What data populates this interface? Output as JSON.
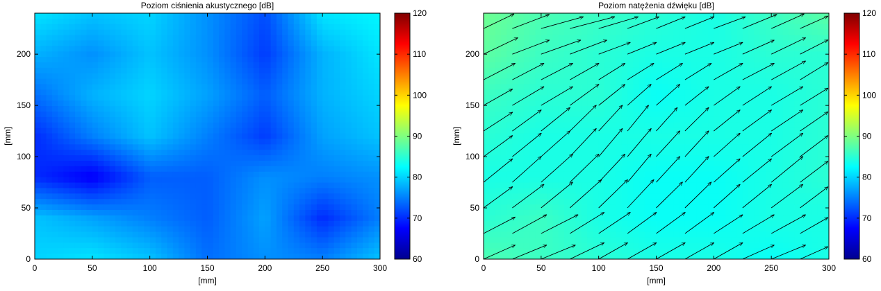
{
  "colors": {
    "colormap": "jet",
    "arrow": "#000000",
    "frame": "#000000"
  },
  "chart_data": [
    {
      "type": "heatmap",
      "title": "Poziom ciśnienia akustycznego [dB]",
      "xlabel": "[mm]",
      "ylabel": "[mm]",
      "xlim": [
        0,
        300
      ],
      "ylim": [
        0,
        240
      ],
      "xticks": [
        "0",
        "50",
        "100",
        "150",
        "200",
        "250",
        "300"
      ],
      "yticks": [
        "0",
        "50",
        "100",
        "150",
        "200"
      ],
      "colorbar": {
        "clim": [
          60,
          120
        ],
        "ticks": [
          "60",
          "70",
          "80",
          "90",
          "100",
          "110",
          "120"
        ]
      },
      "x": [
        0,
        50,
        100,
        150,
        200,
        250,
        300
      ],
      "y": [
        0,
        40,
        80,
        120,
        160,
        200,
        240
      ],
      "values": [
        [
          80,
          81,
          79,
          74,
          76,
          75,
          79
        ],
        [
          79,
          77,
          75,
          73,
          77,
          70,
          75
        ],
        [
          70,
          67,
          73,
          73,
          76,
          75,
          76
        ],
        [
          70,
          75,
          79,
          75,
          71,
          77,
          79
        ],
        [
          74,
          78,
          80,
          77,
          73,
          78,
          80
        ],
        [
          78,
          76,
          79,
          76,
          71,
          78,
          81
        ],
        [
          81,
          79,
          80,
          76,
          72,
          81,
          82
        ]
      ]
    },
    {
      "type": "heatmap",
      "title": "Poziom natężenia dźwięku [dB]",
      "xlabel": "[mm]",
      "ylabel": "[mm]",
      "xlim": [
        0,
        300
      ],
      "ylim": [
        0,
        240
      ],
      "xticks": [
        "0",
        "50",
        "100",
        "150",
        "200",
        "250",
        "300"
      ],
      "yticks": [
        "0",
        "50",
        "100",
        "150",
        "200"
      ],
      "colorbar": {
        "clim": [
          60,
          120
        ],
        "ticks": [
          "60",
          "70",
          "80",
          "90",
          "100",
          "110",
          "120"
        ]
      },
      "x": [
        0,
        50,
        100,
        150,
        200,
        250,
        300
      ],
      "y": [
        0,
        40,
        80,
        120,
        160,
        200,
        240
      ],
      "values": [
        [
          87,
          86,
          85,
          84,
          84,
          83,
          84
        ],
        [
          85,
          86,
          84,
          83,
          83,
          84,
          84
        ],
        [
          84,
          84,
          84,
          83,
          83,
          84,
          85
        ],
        [
          85,
          84,
          84,
          84,
          84,
          84,
          85
        ],
        [
          86,
          85,
          85,
          83,
          84,
          84,
          85
        ],
        [
          88,
          86,
          85,
          84,
          84,
          85,
          85
        ],
        [
          89,
          87,
          86,
          85,
          84,
          86,
          88
        ]
      ],
      "vectors": {
        "x": [
          0,
          25,
          50,
          75,
          100,
          125,
          150,
          175,
          200,
          225,
          250,
          275,
          300
        ],
        "y": [
          0,
          25,
          50,
          75,
          100,
          125,
          150,
          175,
          200,
          225
        ],
        "u": [
          [
            12,
            13,
            13,
            13,
            11,
            11,
            11,
            11,
            11,
            12,
            13,
            14,
            13
          ],
          [
            12,
            13,
            14,
            13,
            12,
            11,
            11,
            11,
            11,
            12,
            13,
            14,
            14
          ],
          [
            11,
            12,
            12,
            12,
            11,
            10,
            10,
            10,
            10,
            11,
            12,
            13,
            13
          ],
          [
            11,
            11,
            12,
            11,
            10,
            9,
            9,
            9,
            10,
            11,
            12,
            13,
            13
          ],
          [
            11,
            11,
            11,
            10,
            9,
            9,
            9,
            9,
            10,
            11,
            12,
            13,
            13
          ],
          [
            11,
            11,
            11,
            10,
            9,
            8,
            8,
            9,
            10,
            11,
            12,
            13,
            13
          ],
          [
            11,
            12,
            12,
            11,
            10,
            9,
            9,
            9,
            10,
            11,
            12,
            13,
            14
          ],
          [
            12,
            12,
            12,
            11,
            10,
            10,
            10,
            10,
            11,
            12,
            13,
            13,
            14
          ],
          [
            13,
            14,
            15,
            14,
            12,
            11,
            11,
            11,
            11,
            12,
            13,
            14,
            14
          ],
          [
            13,
            14,
            16,
            17,
            15,
            12,
            11,
            11,
            12,
            13,
            14,
            14,
            14
          ]
        ],
        "v": [
          [
            6,
            6,
            6,
            7,
            7,
            7,
            7,
            7,
            7,
            6,
            6,
            7,
            7
          ],
          [
            7,
            8,
            8,
            9,
            9,
            9,
            9,
            9,
            8,
            8,
            8,
            9,
            9
          ],
          [
            9,
            10,
            11,
            12,
            12,
            12,
            11,
            11,
            10,
            10,
            10,
            11,
            11
          ],
          [
            10,
            11,
            12,
            12,
            12,
            12,
            11,
            11,
            10,
            10,
            11,
            11,
            12
          ],
          [
            9,
            10,
            11,
            12,
            12,
            12,
            11,
            11,
            10,
            10,
            10,
            11,
            11
          ],
          [
            8,
            9,
            10,
            11,
            11,
            11,
            10,
            10,
            9,
            9,
            9,
            10,
            11
          ],
          [
            7,
            8,
            8,
            9,
            9,
            9,
            9,
            8,
            8,
            8,
            8,
            9,
            10
          ],
          [
            7,
            7,
            7,
            7,
            7,
            7,
            7,
            7,
            7,
            7,
            8,
            9,
            10
          ],
          [
            7,
            6,
            6,
            6,
            5,
            5,
            5,
            5,
            5,
            6,
            7,
            8,
            9
          ],
          [
            7,
            6,
            5,
            5,
            5,
            5,
            5,
            5,
            5,
            6,
            7,
            7,
            7
          ]
        ]
      }
    }
  ]
}
